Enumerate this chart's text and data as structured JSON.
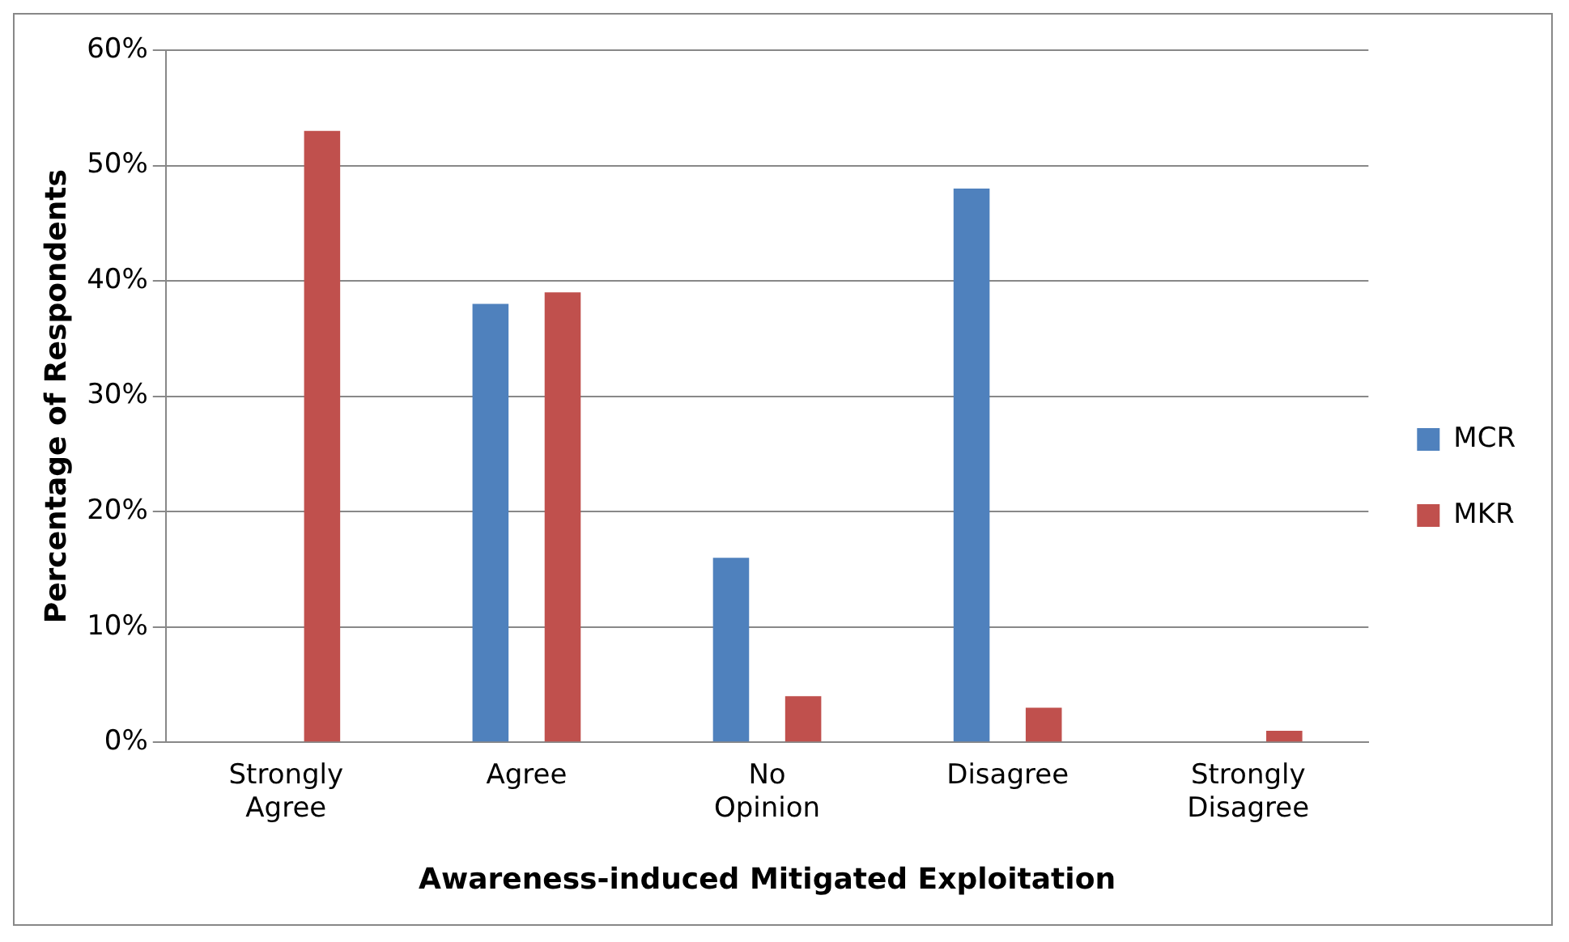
{
  "chart_data": {
    "type": "bar",
    "xlabel": "Awareness-induced Mitigated Exploitation",
    "ylabel": "Percentage of Respondents",
    "categories": [
      "Strongly Agree",
      "Agree",
      "No Opinion",
      "Disagree",
      "Strongly Disagree"
    ],
    "series": [
      {
        "name": "MCR",
        "color": "#4f81bd",
        "values": [
          0,
          38,
          16,
          48,
          0
        ]
      },
      {
        "name": "MKR",
        "color": "#c0504d",
        "values": [
          53,
          39,
          4,
          3,
          1
        ]
      }
    ],
    "ylim": [
      0,
      60
    ],
    "yticks": [
      {
        "value": 0,
        "label": "0%"
      },
      {
        "value": 10,
        "label": "10%"
      },
      {
        "value": 20,
        "label": "20%"
      },
      {
        "value": 30,
        "label": "30%"
      },
      {
        "value": 40,
        "label": "40%"
      },
      {
        "value": 50,
        "label": "50%"
      },
      {
        "value": 60,
        "label": "60%"
      }
    ],
    "grid": "y",
    "legend": "right"
  }
}
